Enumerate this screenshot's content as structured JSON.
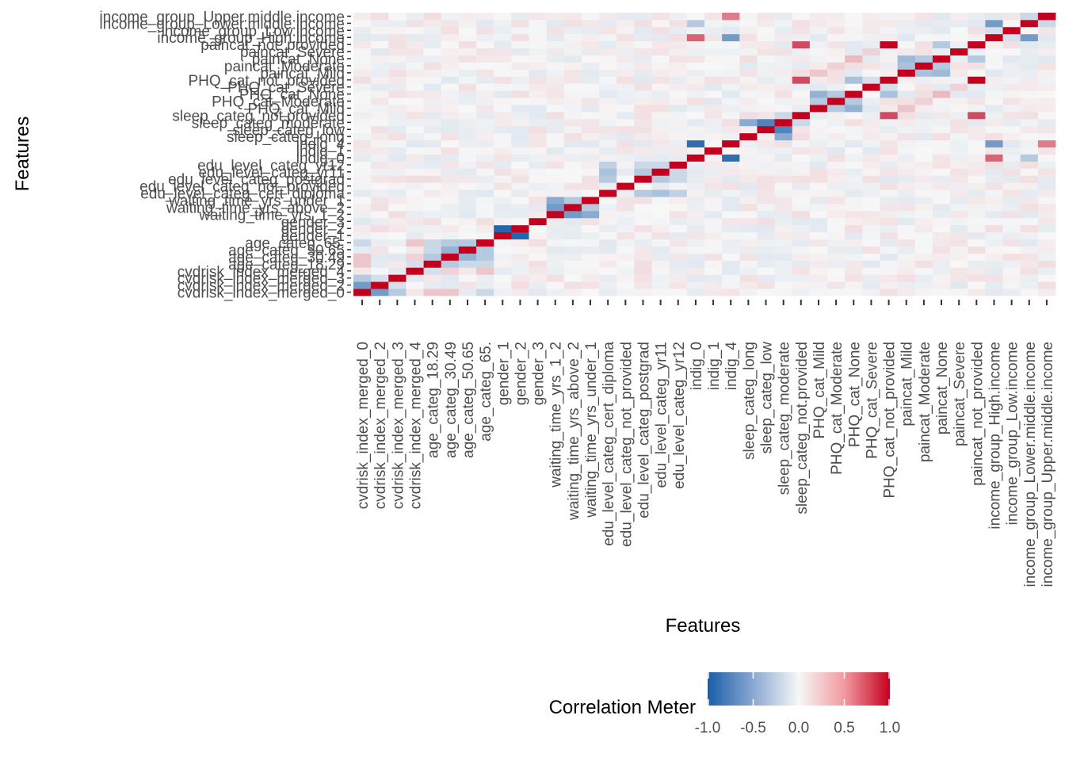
{
  "chart_data": {
    "type": "heatmap",
    "xlabel": "Features",
    "ylabel": "Features",
    "legend": {
      "title": "Correlation Meter",
      "position": "bottom",
      "min": -1.0,
      "max": 1.0,
      "ticks": [
        -1.0,
        -0.5,
        0.0,
        0.5,
        1.0
      ],
      "tick_labels": [
        "-1.0",
        "-0.5",
        "0.0",
        "0.5",
        "1.0"
      ],
      "colors": {
        "low": "#1a5ea8",
        "mid": "#f7f7f7",
        "high": "#c4001f"
      }
    },
    "features": [
      "cvdrisk_index_merged_0",
      "cvdrisk_index_merged_2",
      "cvdrisk_index_merged_3",
      "cvdrisk_index_merged_4",
      "age_categ_18.29",
      "age_categ_30.49",
      "age_categ_50.65",
      "age_categ_65.",
      "gender_1",
      "gender_2",
      "gender_3",
      "waiting_time_yrs_1_2",
      "waiting_time_yrs_above_2",
      "waiting_time_yrs_under_1",
      "edu_level_categ_cert_diploma",
      "edu_level_categ_not_provided",
      "edu_level_categ_postgrad",
      "edu_level_categ_yr11",
      "edu_level_categ_yr12",
      "indig_0",
      "indig_1",
      "indig_4",
      "sleep_categ_long",
      "sleep_categ_low",
      "sleep_categ_moderate",
      "sleep_categ_not.provided",
      "PHQ_cat_Mild",
      "PHQ_cat_Moderate",
      "PHQ_cat_None",
      "PHQ_cat_Severe",
      "PHQ_cat_not_provided",
      "paincat_Mild",
      "paincat_Moderate",
      "paincat_None",
      "paincat_Severe",
      "paincat_not_provided",
      "income_group_High.income",
      "income_group_Low.income",
      "income_group_Lower.middle.income",
      "income_group_Upper.middle.income"
    ],
    "notable_correlations": [
      {
        "a": "cvdrisk_index_merged_0",
        "b": "cvdrisk_index_merged_2",
        "value": -0.6
      },
      {
        "a": "cvdrisk_index_merged_0",
        "b": "cvdrisk_index_merged_3",
        "value": -0.3
      },
      {
        "a": "cvdrisk_index_merged_0",
        "b": "age_categ_18.29",
        "value": 0.2
      },
      {
        "a": "cvdrisk_index_merged_0",
        "b": "age_categ_30.49",
        "value": 0.2
      },
      {
        "a": "cvdrisk_index_merged_0",
        "b": "age_categ_65.",
        "value": -0.2
      },
      {
        "a": "cvdrisk_index_merged_2",
        "b": "cvdrisk_index_merged_3",
        "value": -0.15
      },
      {
        "a": "cvdrisk_index_merged_4",
        "b": "age_categ_18.29",
        "value": -0.15
      },
      {
        "a": "cvdrisk_index_merged_4",
        "b": "age_categ_30.49",
        "value": 0.15
      },
      {
        "a": "cvdrisk_index_merged_4",
        "b": "age_categ_65.",
        "value": 0.2
      },
      {
        "a": "age_categ_18.29",
        "b": "age_categ_30.49",
        "value": -0.3
      },
      {
        "a": "age_categ_18.29",
        "b": "age_categ_50.65",
        "value": -0.2
      },
      {
        "a": "age_categ_18.29",
        "b": "age_categ_65.",
        "value": -0.2
      },
      {
        "a": "age_categ_30.49",
        "b": "age_categ_50.65",
        "value": -0.45
      },
      {
        "a": "age_categ_30.49",
        "b": "age_categ_65.",
        "value": -0.3
      },
      {
        "a": "age_categ_50.65",
        "b": "age_categ_65.",
        "value": -0.3
      },
      {
        "a": "gender_1",
        "b": "gender_2",
        "value": -0.95
      },
      {
        "a": "waiting_time_yrs_1_2",
        "b": "waiting_time_yrs_above_2",
        "value": -0.6
      },
      {
        "a": "waiting_time_yrs_1_2",
        "b": "waiting_time_yrs_under_1",
        "value": -0.5
      },
      {
        "a": "waiting_time_yrs_above_2",
        "b": "waiting_time_yrs_under_1",
        "value": -0.3
      },
      {
        "a": "edu_level_categ_cert_diploma",
        "b": "edu_level_categ_postgrad",
        "value": -0.3
      },
      {
        "a": "edu_level_categ_cert_diploma",
        "b": "edu_level_categ_yr11",
        "value": -0.35
      },
      {
        "a": "edu_level_categ_cert_diploma",
        "b": "edu_level_categ_yr12",
        "value": -0.25
      },
      {
        "a": "edu_level_categ_postgrad",
        "b": "edu_level_categ_yr11",
        "value": -0.3
      },
      {
        "a": "edu_level_categ_postgrad",
        "b": "edu_level_categ_yr12",
        "value": -0.2
      },
      {
        "a": "edu_level_categ_yr11",
        "b": "edu_level_categ_yr12",
        "value": -0.2
      },
      {
        "a": "indig_0",
        "b": "indig_4",
        "value": -0.9
      },
      {
        "a": "indig_0",
        "b": "income_group_High.income",
        "value": 0.6
      },
      {
        "a": "indig_0",
        "b": "income_group_Lower.middle.income",
        "value": -0.3
      },
      {
        "a": "indig_4",
        "b": "income_group_High.income",
        "value": -0.6
      },
      {
        "a": "indig_4",
        "b": "income_group_Upper.middle.income",
        "value": 0.5
      },
      {
        "a": "sleep_categ_long",
        "b": "sleep_categ_moderate",
        "value": -0.5
      },
      {
        "a": "sleep_categ_low",
        "b": "sleep_categ_moderate",
        "value": -0.75
      },
      {
        "a": "sleep_categ_moderate",
        "b": "sleep_categ_not.provided",
        "value": -0.2
      },
      {
        "a": "sleep_categ_not.provided",
        "b": "PHQ_cat_not_provided",
        "value": 0.7
      },
      {
        "a": "sleep_categ_not.provided",
        "b": "paincat_not_provided",
        "value": 0.7
      },
      {
        "a": "PHQ_cat_Mild",
        "b": "PHQ_cat_Moderate",
        "value": -0.3
      },
      {
        "a": "PHQ_cat_Mild",
        "b": "PHQ_cat_None",
        "value": -0.45
      },
      {
        "a": "PHQ_cat_Moderate",
        "b": "PHQ_cat_None",
        "value": -0.3
      },
      {
        "a": "PHQ_cat_None",
        "b": "PHQ_cat_not_provided",
        "value": -0.35
      },
      {
        "a": "PHQ_cat_Severe",
        "b": "PHQ_cat_not_provided",
        "value": -0.15
      },
      {
        "a": "PHQ_cat_not_provided",
        "b": "paincat_not_provided",
        "value": 1.0
      },
      {
        "a": "PHQ_cat_Mild",
        "b": "paincat_Mild",
        "value": 0.2
      },
      {
        "a": "PHQ_cat_Moderate",
        "b": "paincat_Moderate",
        "value": 0.15
      },
      {
        "a": "PHQ_cat_None",
        "b": "paincat_None",
        "value": 0.25
      },
      {
        "a": "PHQ_cat_Severe",
        "b": "paincat_Severe",
        "value": 0.15
      },
      {
        "a": "paincat_Mild",
        "b": "paincat_Moderate",
        "value": -0.35
      },
      {
        "a": "paincat_Mild",
        "b": "paincat_None",
        "value": -0.4
      },
      {
        "a": "paincat_Moderate",
        "b": "paincat_None",
        "value": -0.3
      },
      {
        "a": "paincat_None",
        "b": "paincat_not_provided",
        "value": -0.3
      },
      {
        "a": "income_group_High.income",
        "b": "income_group_Low.income",
        "value": -0.15
      },
      {
        "a": "income_group_High.income",
        "b": "income_group_Lower.middle.income",
        "value": -0.6
      },
      {
        "a": "income_group_Lower.middle.income",
        "b": "income_group_Upper.middle.income",
        "value": -0.2
      }
    ]
  }
}
